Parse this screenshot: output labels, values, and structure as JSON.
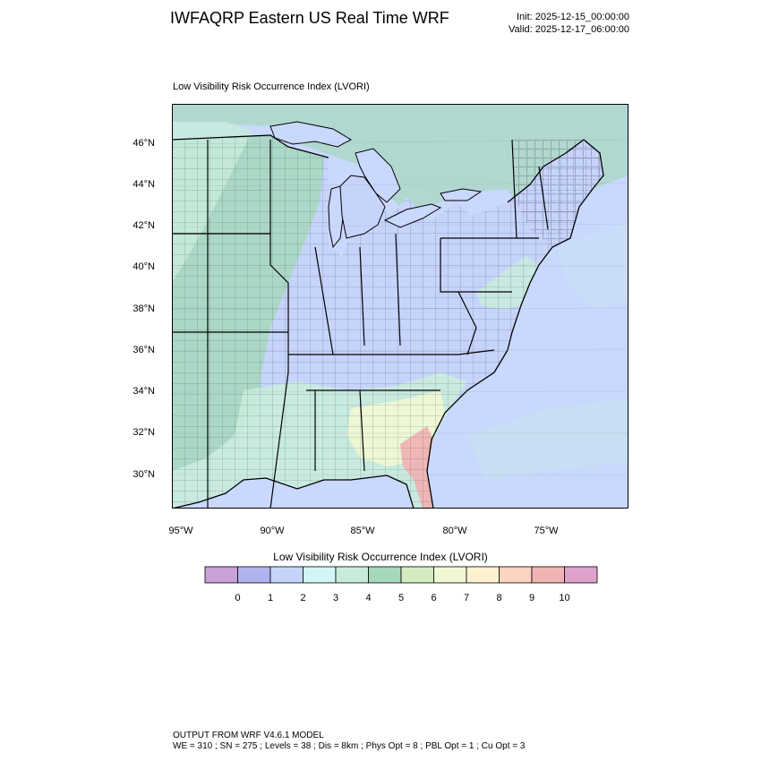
{
  "header": {
    "title": "IWFAQRP Eastern US Real Time WRF",
    "init": "Init: 2025-12-15_00:00:00",
    "valid": "Valid: 2025-12-17_06:00:00"
  },
  "plot": {
    "subtitle": "Low Visibility Risk Occurrence Index   (LVORI)",
    "lat_ticks": [
      "46°N",
      "44°N",
      "42°N",
      "40°N",
      "38°N",
      "36°N",
      "34°N",
      "32°N",
      "30°N"
    ],
    "lon_ticks": [
      "95°W",
      "90°W",
      "85°W",
      "80°W",
      "75°W"
    ]
  },
  "colorbar": {
    "title": "Low Visibility Risk Occurrence Index  (LVORI)",
    "labels": [
      "0",
      "1",
      "2",
      "3",
      "4",
      "5",
      "6",
      "7",
      "8",
      "9",
      "10"
    ],
    "colors": [
      "#c8a2d8",
      "#b0b4ec",
      "#c6d4fb",
      "#d2f6f6",
      "#c8ecdc",
      "#a6d8bc",
      "#d4ecc0",
      "#f0f8d4",
      "#fdf2d0",
      "#fcd2c0",
      "#f0b4b4",
      "#dca4cc"
    ]
  },
  "map_colors": {
    "water": "#c9d8fd",
    "land_low": "#c6d4fb",
    "land_green": "#a6d8bc",
    "land_lightgreen": "#c8ecdc",
    "land_yellow": "#f0f8d4",
    "land_red": "#f0b4b4"
  },
  "footer": {
    "line1": "OUTPUT FROM WRF V4.6.1 MODEL",
    "line2": "WE = 310 ; SN = 275 ; Levels = 38 ; Dis = 8km ; Phys Opt = 8 ; PBL Opt = 1 ; Cu Opt = 3"
  }
}
